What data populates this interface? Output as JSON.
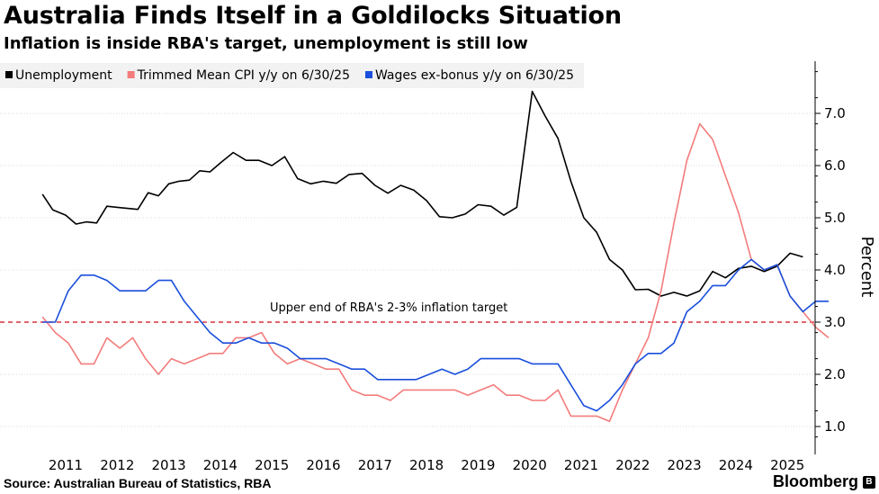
{
  "header": {
    "title": "Australia Finds Itself in a Goldilocks Situation",
    "subtitle": "Inflation is inside RBA's target, unemployment is still low"
  },
  "footer": {
    "source": "Source: Australian Bureau of Statistics, RBA",
    "brand": "Bloomberg"
  },
  "chart_data": {
    "type": "line",
    "title": "Australia Finds Itself in a Goldilocks Situation",
    "subtitle": "Inflation is inside RBA's target, unemployment is still low",
    "ylabel": "Percent",
    "ylim": [
      0.7,
      7.9
    ],
    "xlim": [
      2010.55,
      2025.55
    ],
    "yticks": [
      "1.0",
      "2.0",
      "3.0",
      "4.0",
      "5.0",
      "6.0",
      "7.0"
    ],
    "xticks": [
      "2011",
      "2012",
      "2013",
      "2014",
      "2015",
      "2016",
      "2017",
      "2018",
      "2019",
      "2020",
      "2021",
      "2022",
      "2023",
      "2024",
      "2025"
    ],
    "legend_position": "top-left",
    "series": [
      {
        "name": "Unemployment",
        "color": "#000000",
        "points": [
          [
            2010.55,
            5.45
          ],
          [
            2010.75,
            5.15
          ],
          [
            2011.0,
            5.05
          ],
          [
            2011.2,
            4.88
          ],
          [
            2011.4,
            4.92
          ],
          [
            2011.6,
            4.9
          ],
          [
            2011.8,
            5.22
          ],
          [
            2012.0,
            5.2
          ],
          [
            2012.2,
            5.18
          ],
          [
            2012.4,
            5.16
          ],
          [
            2012.6,
            5.48
          ],
          [
            2012.8,
            5.42
          ],
          [
            2013.0,
            5.65
          ],
          [
            2013.2,
            5.7
          ],
          [
            2013.4,
            5.72
          ],
          [
            2013.6,
            5.9
          ],
          [
            2013.8,
            5.88
          ],
          [
            2014.0,
            6.05
          ],
          [
            2014.25,
            6.25
          ],
          [
            2014.5,
            6.1
          ],
          [
            2014.75,
            6.1
          ],
          [
            2015.0,
            6.0
          ],
          [
            2015.25,
            6.17
          ],
          [
            2015.5,
            5.75
          ],
          [
            2015.75,
            5.65
          ],
          [
            2016.0,
            5.7
          ],
          [
            2016.25,
            5.66
          ],
          [
            2016.5,
            5.83
          ],
          [
            2016.75,
            5.85
          ],
          [
            2017.0,
            5.62
          ],
          [
            2017.25,
            5.47
          ],
          [
            2017.5,
            5.62
          ],
          [
            2017.75,
            5.53
          ],
          [
            2018.0,
            5.33
          ],
          [
            2018.25,
            5.02
          ],
          [
            2018.5,
            5.0
          ],
          [
            2018.75,
            5.07
          ],
          [
            2019.0,
            5.25
          ],
          [
            2019.25,
            5.22
          ],
          [
            2019.5,
            5.05
          ],
          [
            2019.75,
            5.2
          ],
          [
            2020.05,
            7.42
          ],
          [
            2020.3,
            6.95
          ],
          [
            2020.55,
            6.52
          ],
          [
            2020.8,
            5.7
          ],
          [
            2021.05,
            5.0
          ],
          [
            2021.3,
            4.72
          ],
          [
            2021.55,
            4.2
          ],
          [
            2021.8,
            4.0
          ],
          [
            2022.05,
            3.62
          ],
          [
            2022.3,
            3.63
          ],
          [
            2022.55,
            3.5
          ],
          [
            2022.8,
            3.57
          ],
          [
            2023.05,
            3.5
          ],
          [
            2023.3,
            3.6
          ],
          [
            2023.55,
            3.97
          ],
          [
            2023.8,
            3.85
          ],
          [
            2024.05,
            4.03
          ],
          [
            2024.3,
            4.07
          ],
          [
            2024.55,
            3.97
          ],
          [
            2024.8,
            4.07
          ],
          [
            2025.05,
            4.32
          ],
          [
            2025.3,
            4.25
          ]
        ]
      },
      {
        "name": "Trimmed Mean CPI y/y on 6/30/25",
        "color": "#f47c7c",
        "points": [
          [
            2010.55,
            3.1
          ],
          [
            2010.8,
            2.8
          ],
          [
            2011.05,
            2.6
          ],
          [
            2011.3,
            2.2
          ],
          [
            2011.55,
            2.2
          ],
          [
            2011.8,
            2.7
          ],
          [
            2012.05,
            2.5
          ],
          [
            2012.3,
            2.7
          ],
          [
            2012.55,
            2.3
          ],
          [
            2012.8,
            2.0
          ],
          [
            2013.05,
            2.3
          ],
          [
            2013.3,
            2.2
          ],
          [
            2013.55,
            2.3
          ],
          [
            2013.8,
            2.4
          ],
          [
            2014.05,
            2.4
          ],
          [
            2014.3,
            2.7
          ],
          [
            2014.55,
            2.7
          ],
          [
            2014.8,
            2.8
          ],
          [
            2015.05,
            2.4
          ],
          [
            2015.3,
            2.2
          ],
          [
            2015.55,
            2.3
          ],
          [
            2015.8,
            2.2
          ],
          [
            2016.05,
            2.1
          ],
          [
            2016.3,
            2.1
          ],
          [
            2016.55,
            1.7
          ],
          [
            2016.8,
            1.6
          ],
          [
            2017.05,
            1.6
          ],
          [
            2017.3,
            1.5
          ],
          [
            2017.55,
            1.7
          ],
          [
            2017.8,
            1.7
          ],
          [
            2018.05,
            1.7
          ],
          [
            2018.3,
            1.7
          ],
          [
            2018.55,
            1.7
          ],
          [
            2018.8,
            1.6
          ],
          [
            2019.05,
            1.7
          ],
          [
            2019.3,
            1.8
          ],
          [
            2019.55,
            1.6
          ],
          [
            2019.8,
            1.6
          ],
          [
            2020.05,
            1.5
          ],
          [
            2020.3,
            1.5
          ],
          [
            2020.55,
            1.7
          ],
          [
            2020.8,
            1.2
          ],
          [
            2021.05,
            1.2
          ],
          [
            2021.3,
            1.2
          ],
          [
            2021.55,
            1.1
          ],
          [
            2021.8,
            1.7
          ],
          [
            2022.05,
            2.2
          ],
          [
            2022.3,
            2.7
          ],
          [
            2022.55,
            3.6
          ],
          [
            2022.8,
            4.9
          ],
          [
            2023.05,
            6.1
          ],
          [
            2023.3,
            6.8
          ],
          [
            2023.55,
            6.5
          ],
          [
            2023.8,
            5.8
          ],
          [
            2024.05,
            5.1
          ],
          [
            2024.3,
            4.2
          ],
          [
            2024.55,
            4.0
          ],
          [
            2024.8,
            4.1
          ],
          [
            2025.05,
            3.5
          ],
          [
            2025.3,
            3.2
          ],
          [
            2025.55,
            2.9
          ],
          [
            2025.8,
            2.7
          ]
        ]
      },
      {
        "name": "Wages ex-bonus y/y on 6/30/25",
        "color": "#1a4fdc",
        "points": [
          [
            2010.55,
            3.0
          ],
          [
            2010.8,
            3.0
          ],
          [
            2011.05,
            3.6
          ],
          [
            2011.3,
            3.9
          ],
          [
            2011.55,
            3.9
          ],
          [
            2011.8,
            3.8
          ],
          [
            2012.05,
            3.6
          ],
          [
            2012.3,
            3.6
          ],
          [
            2012.55,
            3.6
          ],
          [
            2012.8,
            3.8
          ],
          [
            2013.05,
            3.8
          ],
          [
            2013.3,
            3.4
          ],
          [
            2013.55,
            3.1
          ],
          [
            2013.8,
            2.8
          ],
          [
            2014.05,
            2.6
          ],
          [
            2014.3,
            2.6
          ],
          [
            2014.55,
            2.7
          ],
          [
            2014.8,
            2.6
          ],
          [
            2015.05,
            2.6
          ],
          [
            2015.3,
            2.5
          ],
          [
            2015.55,
            2.3
          ],
          [
            2015.8,
            2.3
          ],
          [
            2016.05,
            2.3
          ],
          [
            2016.3,
            2.2
          ],
          [
            2016.55,
            2.1
          ],
          [
            2016.8,
            2.1
          ],
          [
            2017.05,
            1.9
          ],
          [
            2017.3,
            1.9
          ],
          [
            2017.55,
            1.9
          ],
          [
            2017.8,
            1.9
          ],
          [
            2018.05,
            2.0
          ],
          [
            2018.3,
            2.1
          ],
          [
            2018.55,
            2.0
          ],
          [
            2018.8,
            2.1
          ],
          [
            2019.05,
            2.3
          ],
          [
            2019.3,
            2.3
          ],
          [
            2019.55,
            2.3
          ],
          [
            2019.8,
            2.3
          ],
          [
            2020.05,
            2.2
          ],
          [
            2020.3,
            2.2
          ],
          [
            2020.55,
            2.2
          ],
          [
            2020.8,
            1.8
          ],
          [
            2021.05,
            1.4
          ],
          [
            2021.3,
            1.3
          ],
          [
            2021.55,
            1.5
          ],
          [
            2021.8,
            1.8
          ],
          [
            2022.05,
            2.2
          ],
          [
            2022.3,
            2.4
          ],
          [
            2022.55,
            2.4
          ],
          [
            2022.8,
            2.6
          ],
          [
            2023.05,
            3.2
          ],
          [
            2023.3,
            3.4
          ],
          [
            2023.55,
            3.7
          ],
          [
            2023.8,
            3.7
          ],
          [
            2024.05,
            4.0
          ],
          [
            2024.3,
            4.2
          ],
          [
            2024.55,
            4.0
          ],
          [
            2024.8,
            4.1
          ],
          [
            2025.05,
            3.5
          ],
          [
            2025.3,
            3.2
          ],
          [
            2025.55,
            3.4
          ],
          [
            2025.8,
            3.4
          ]
        ]
      }
    ],
    "reference_line": {
      "value": 3.0,
      "label": "Upper end of RBA's 2-3% inflation target",
      "color": "#d9343e"
    }
  }
}
